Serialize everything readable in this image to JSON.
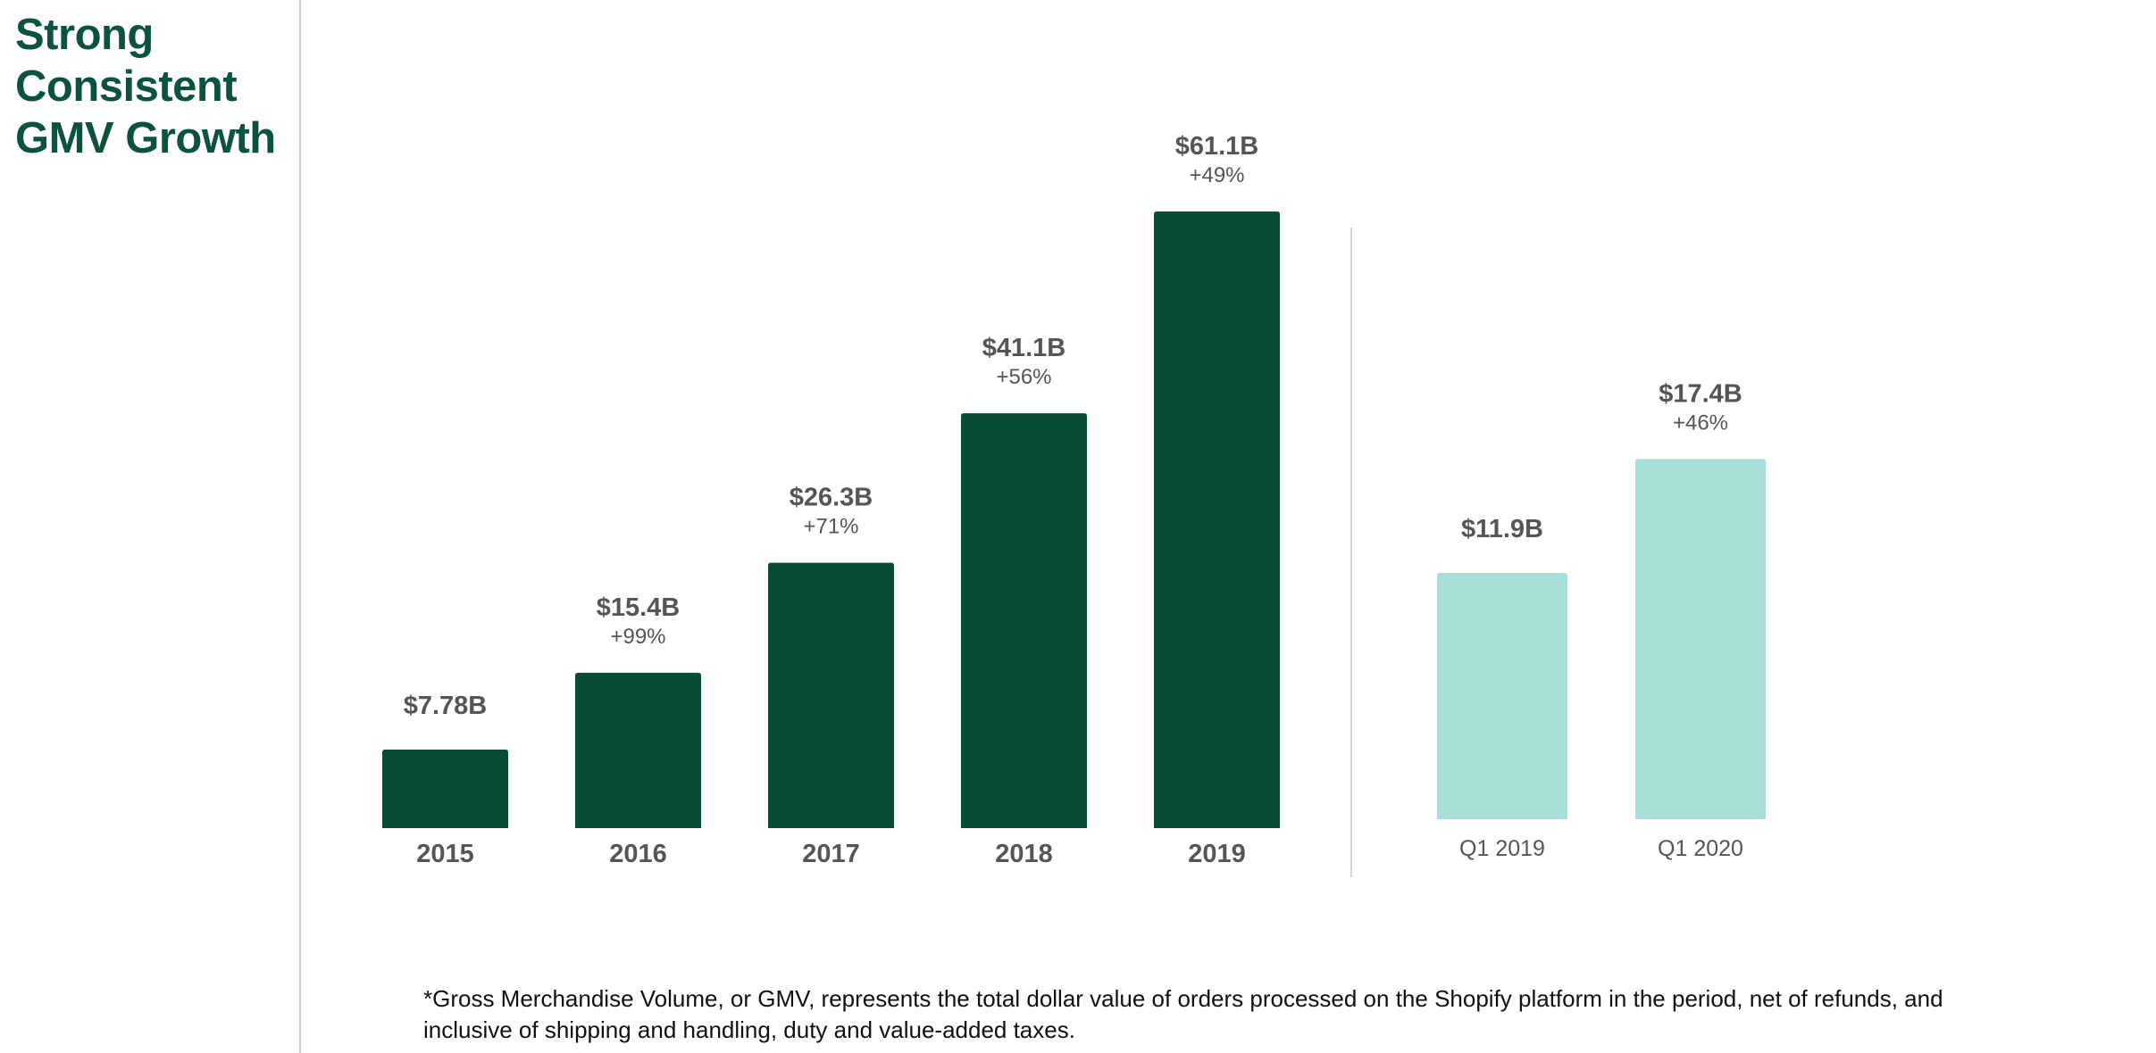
{
  "slide": {
    "title_lines": [
      "Strong",
      "Consistent",
      "GMV Growth"
    ],
    "footnote_lines": [
      "*Gross Merchandise Volume, or GMV, represents the total dollar value of orders processed on the Shopify platform in the period, net of refunds, and",
      "inclusive of shipping and handling, duty and value-added taxes."
    ]
  },
  "colors": {
    "title": "#0b5340",
    "annual_bar": "#084c37",
    "quarterly_bar": "#a5dfd7",
    "label_text": "#555555",
    "divider": "#d4d4d4"
  },
  "chart_data": [
    {
      "type": "bar",
      "title": "",
      "xlabel": "",
      "ylabel": "",
      "categories": [
        "2015",
        "2016",
        "2017",
        "2018",
        "2019"
      ],
      "values": [
        7.78,
        15.4,
        26.3,
        41.1,
        61.1
      ],
      "value_labels": [
        "$7.78B",
        "$15.4B",
        "$26.3B",
        "$41.1B",
        "$61.1B"
      ],
      "growth_labels": [
        "",
        "+99%",
        "+71%",
        "+56%",
        "+49%"
      ],
      "grid": false,
      "legend": "none"
    },
    {
      "type": "bar",
      "title": "",
      "xlabel": "",
      "ylabel": "",
      "categories": [
        "Q1 2019",
        "Q1 2020"
      ],
      "values": [
        11.9,
        17.4
      ],
      "value_labels": [
        "$11.9B",
        "$17.4B"
      ],
      "growth_labels": [
        "",
        "+46%"
      ],
      "grid": false,
      "legend": "none"
    }
  ]
}
